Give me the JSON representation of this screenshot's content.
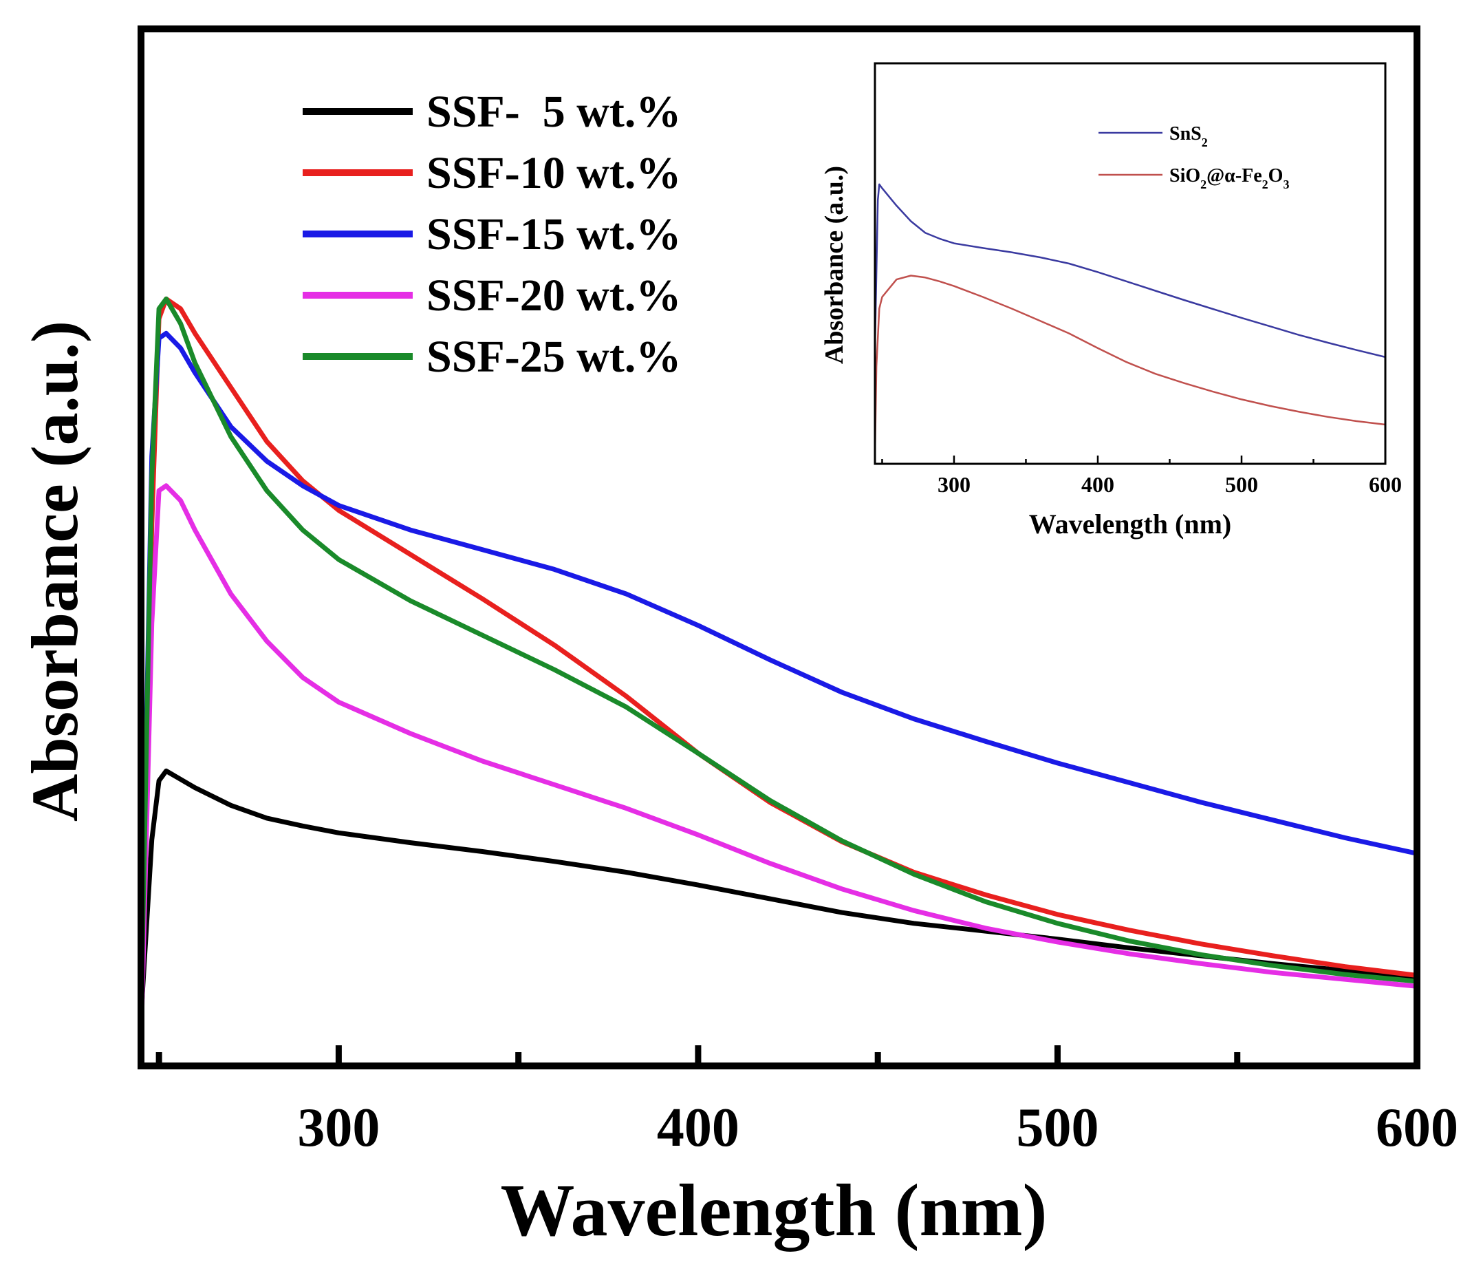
{
  "chart_data": [
    {
      "type": "line",
      "title": "",
      "xlabel": "Wavelength (nm)",
      "ylabel": "Absorbance (a.u.)",
      "xlim": [
        245,
        600
      ],
      "ylim": [
        0,
        1.0
      ],
      "xticks": [
        300,
        400,
        500,
        600
      ],
      "legend_position": "top-left",
      "series": [
        {
          "name": "SSF-  5 wt.%",
          "color": "#000000",
          "x": [
            245,
            248,
            250,
            252,
            260,
            270,
            280,
            290,
            300,
            320,
            340,
            360,
            380,
            400,
            420,
            440,
            460,
            480,
            500,
            520,
            540,
            560,
            580,
            600
          ],
          "y": [
            0.05,
            0.23,
            0.29,
            0.3,
            0.283,
            0.265,
            0.252,
            0.244,
            0.237,
            0.227,
            0.218,
            0.208,
            0.197,
            0.184,
            0.17,
            0.156,
            0.145,
            0.137,
            0.129,
            0.12,
            0.112,
            0.104,
            0.097,
            0.09
          ]
        },
        {
          "name": "SSF-10 wt.%",
          "color": "#e8201e",
          "x": [
            245,
            248,
            250,
            252,
            256,
            260,
            270,
            280,
            290,
            300,
            320,
            340,
            360,
            380,
            400,
            420,
            440,
            460,
            480,
            500,
            520,
            540,
            560,
            580,
            600
          ],
          "y": [
            0.07,
            0.55,
            0.76,
            0.78,
            0.77,
            0.745,
            0.69,
            0.635,
            0.595,
            0.565,
            0.52,
            0.475,
            0.428,
            0.376,
            0.318,
            0.268,
            0.228,
            0.197,
            0.174,
            0.154,
            0.138,
            0.124,
            0.112,
            0.101,
            0.092
          ]
        },
        {
          "name": "SSF-15 wt.%",
          "color": "#1a1ae6",
          "x": [
            245,
            248,
            250,
            252,
            256,
            260,
            270,
            280,
            290,
            300,
            320,
            340,
            360,
            380,
            400,
            420,
            440,
            460,
            480,
            500,
            520,
            540,
            560,
            580,
            600
          ],
          "y": [
            0.06,
            0.62,
            0.74,
            0.745,
            0.73,
            0.705,
            0.65,
            0.615,
            0.59,
            0.57,
            0.545,
            0.525,
            0.505,
            0.48,
            0.448,
            0.413,
            0.38,
            0.353,
            0.33,
            0.308,
            0.288,
            0.268,
            0.25,
            0.232,
            0.216
          ]
        },
        {
          "name": "SSF-20 wt.%",
          "color": "#e52ee5",
          "x": [
            245,
            248,
            250,
            252,
            256,
            260,
            270,
            280,
            290,
            300,
            320,
            340,
            360,
            380,
            400,
            420,
            440,
            460,
            480,
            500,
            520,
            540,
            560,
            580,
            600
          ],
          "y": [
            0.02,
            0.45,
            0.585,
            0.59,
            0.575,
            0.545,
            0.48,
            0.432,
            0.395,
            0.37,
            0.338,
            0.31,
            0.286,
            0.262,
            0.235,
            0.206,
            0.18,
            0.158,
            0.14,
            0.126,
            0.114,
            0.104,
            0.095,
            0.088,
            0.081
          ]
        },
        {
          "name": "SSF-25 wt.%",
          "color": "#1a8a2a",
          "x": [
            245,
            248,
            250,
            252,
            256,
            260,
            270,
            280,
            290,
            300,
            320,
            340,
            360,
            380,
            400,
            420,
            440,
            460,
            480,
            500,
            520,
            540,
            560,
            580,
            600
          ],
          "y": [
            0.05,
            0.6,
            0.77,
            0.78,
            0.755,
            0.715,
            0.64,
            0.585,
            0.545,
            0.515,
            0.473,
            0.438,
            0.403,
            0.365,
            0.318,
            0.27,
            0.229,
            0.195,
            0.167,
            0.145,
            0.127,
            0.113,
            0.102,
            0.093,
            0.086
          ]
        }
      ]
    },
    {
      "type": "line",
      "title": "",
      "xlabel": "Wavelength (nm)",
      "ylabel": "Absorbance (a.u.)",
      "xlim": [
        245,
        600
      ],
      "ylim": [
        0,
        1.0
      ],
      "xticks": [
        300,
        400,
        500,
        600
      ],
      "legend_position": "top-right",
      "series": [
        {
          "name": "SnS2",
          "label_main": "SnS",
          "label_sub": "2",
          "color": "#3a3aa0",
          "x": [
            245,
            247,
            248,
            250,
            260,
            270,
            280,
            290,
            300,
            320,
            340,
            360,
            380,
            400,
            420,
            440,
            460,
            480,
            500,
            520,
            540,
            560,
            580,
            600
          ],
          "y": [
            0.3,
            0.68,
            0.72,
            0.71,
            0.665,
            0.625,
            0.595,
            0.58,
            0.568,
            0.556,
            0.545,
            0.532,
            0.516,
            0.494,
            0.47,
            0.446,
            0.422,
            0.399,
            0.376,
            0.354,
            0.332,
            0.312,
            0.293,
            0.275
          ]
        },
        {
          "name": "SiO2@α-Fe2O3",
          "label_parts": [
            "SiO",
            "2",
            "@α-Fe",
            "2",
            "O",
            "3"
          ],
          "color": "#c0504d",
          "x": [
            245,
            246,
            248,
            250,
            260,
            270,
            280,
            290,
            300,
            320,
            340,
            360,
            380,
            400,
            420,
            440,
            460,
            480,
            500,
            520,
            540,
            560,
            580,
            600
          ],
          "y": [
            0.02,
            0.25,
            0.4,
            0.43,
            0.475,
            0.485,
            0.48,
            0.47,
            0.458,
            0.43,
            0.4,
            0.368,
            0.336,
            0.298,
            0.262,
            0.232,
            0.208,
            0.186,
            0.166,
            0.149,
            0.134,
            0.121,
            0.11,
            0.101
          ]
        }
      ]
    }
  ]
}
